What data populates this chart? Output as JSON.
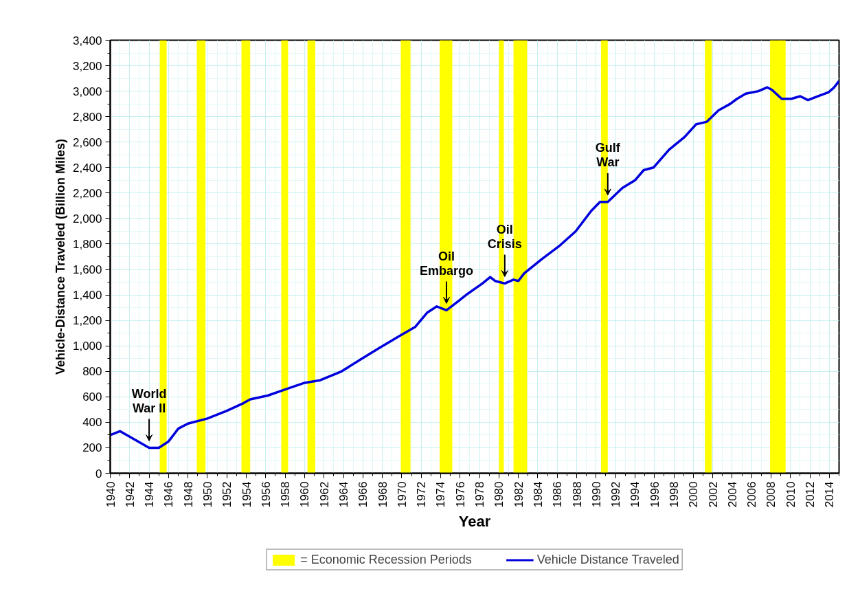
{
  "chart_data": {
    "type": "line",
    "xlabel": "Year",
    "ylabel": "Vehicle-Distance Traveled (Billion Miles)",
    "xlim": [
      1940,
      2015
    ],
    "ylim": [
      0,
      3400
    ],
    "xticks": [
      1940,
      1942,
      1944,
      1946,
      1948,
      1950,
      1952,
      1954,
      1956,
      1958,
      1960,
      1962,
      1964,
      1966,
      1968,
      1970,
      1972,
      1974,
      1976,
      1978,
      1980,
      1982,
      1984,
      1986,
      1988,
      1990,
      1992,
      1994,
      1996,
      1998,
      2000,
      2002,
      2004,
      2006,
      2008,
      2010,
      2012,
      2014
    ],
    "yticks": [
      {
        "value": 0,
        "label": "0"
      },
      {
        "value": 200,
        "label": "200"
      },
      {
        "value": 400,
        "label": "400"
      },
      {
        "value": 600,
        "label": "600"
      },
      {
        "value": 800,
        "label": "800"
      },
      {
        "value": 1000,
        "label": "1,000"
      },
      {
        "value": 1200,
        "label": "1,200"
      },
      {
        "value": 1400,
        "label": "1,400"
      },
      {
        "value": 1600,
        "label": "1,600"
      },
      {
        "value": 1800,
        "label": "1,800"
      },
      {
        "value": 2000,
        "label": "2,000"
      },
      {
        "value": 2200,
        "label": "2,200"
      },
      {
        "value": 2400,
        "label": "2,400"
      },
      {
        "value": 2600,
        "label": "2,600"
      },
      {
        "value": 2800,
        "label": "2,800"
      },
      {
        "value": 3000,
        "label": "3,000"
      },
      {
        "value": 3200,
        "label": "3,200"
      },
      {
        "value": 3400,
        "label": "3,400"
      }
    ],
    "grid": true,
    "legend": "bottom",
    "line_style": "solid",
    "marker": "none",
    "series": [
      {
        "name": "Vehicle Distance Traveled",
        "color": "#0000dd",
        "x": [
          1940,
          1941,
          1944,
          1945,
          1946,
          1947,
          1948,
          1950,
          1952,
          1953.7,
          1954.4,
          1956.2,
          1958.1,
          1960,
          1961.6,
          1963.8,
          1965.7,
          1967.6,
          1969.8,
          1971.4,
          1972.6,
          1973.6,
          1974.6,
          1975.8,
          1976.8,
          1978.3,
          1979.1,
          1979.6,
          1980.6,
          1981.5,
          1982,
          1982.6,
          1984.4,
          1986.3,
          1987.9,
          1989.5,
          1990.4,
          1991.2,
          1992.7,
          1994,
          1994.9,
          1995.9,
          1997.5,
          1999.1,
          2000.3,
          2001.4,
          2002.6,
          2003.8,
          2004.5,
          2005.4,
          2006.7,
          2007.6,
          2008.1,
          2009.1,
          2010.1,
          2011,
          2011.8,
          2012.8,
          2013.9,
          2014.5,
          2015
        ],
        "values": [
          300,
          330,
          200,
          200,
          250,
          350,
          390,
          430,
          490,
          550,
          580,
          610,
          660,
          710,
          730,
          800,
          890,
          980,
          1080,
          1150,
          1260,
          1310,
          1280,
          1350,
          1410,
          1490,
          1540,
          1510,
          1490,
          1520,
          1510,
          1570,
          1680,
          1790,
          1900,
          2060,
          2130,
          2130,
          2240,
          2300,
          2380,
          2400,
          2540,
          2640,
          2740,
          2760,
          2850,
          2900,
          2940,
          2980,
          3000,
          3030,
          3010,
          2940,
          2940,
          2960,
          2930,
          2960,
          2990,
          3030,
          3080
        ]
      }
    ],
    "bands": [
      {
        "axis": "x",
        "from": 1945.1,
        "to": 1945.8,
        "color": "#ffff00",
        "label": "= Economic Recession Periods"
      },
      {
        "axis": "x",
        "from": 1948.9,
        "to": 1949.8,
        "color": "#ffff00"
      },
      {
        "axis": "x",
        "from": 1953.5,
        "to": 1954.4,
        "color": "#ffff00"
      },
      {
        "axis": "x",
        "from": 1957.6,
        "to": 1958.3,
        "color": "#ffff00"
      },
      {
        "axis": "x",
        "from": 1960.3,
        "to": 1961.1,
        "color": "#ffff00"
      },
      {
        "axis": "x",
        "from": 1969.9,
        "to": 1970.9,
        "color": "#ffff00"
      },
      {
        "axis": "x",
        "from": 1973.9,
        "to": 1975.2,
        "color": "#ffff00"
      },
      {
        "axis": "x",
        "from": 1980.0,
        "to": 1980.5,
        "color": "#ffff00"
      },
      {
        "axis": "x",
        "from": 1981.5,
        "to": 1982.9,
        "color": "#ffff00"
      },
      {
        "axis": "x",
        "from": 1990.5,
        "to": 1991.2,
        "color": "#ffff00"
      },
      {
        "axis": "x",
        "from": 2001.2,
        "to": 2001.9,
        "color": "#ffff00"
      },
      {
        "axis": "x",
        "from": 2007.9,
        "to": 2009.5,
        "color": "#ffff00"
      }
    ],
    "annotations": [
      {
        "text": "World\nWar II",
        "x": 1944,
        "y": 200
      },
      {
        "text": "Oil\nEmbargo",
        "x": 1974.6,
        "y": 1280
      },
      {
        "text": "Oil\nCrisis",
        "x": 1980.6,
        "y": 1490
      },
      {
        "text": "Gulf\nWar",
        "x": 1991.2,
        "y": 2130
      }
    ]
  }
}
